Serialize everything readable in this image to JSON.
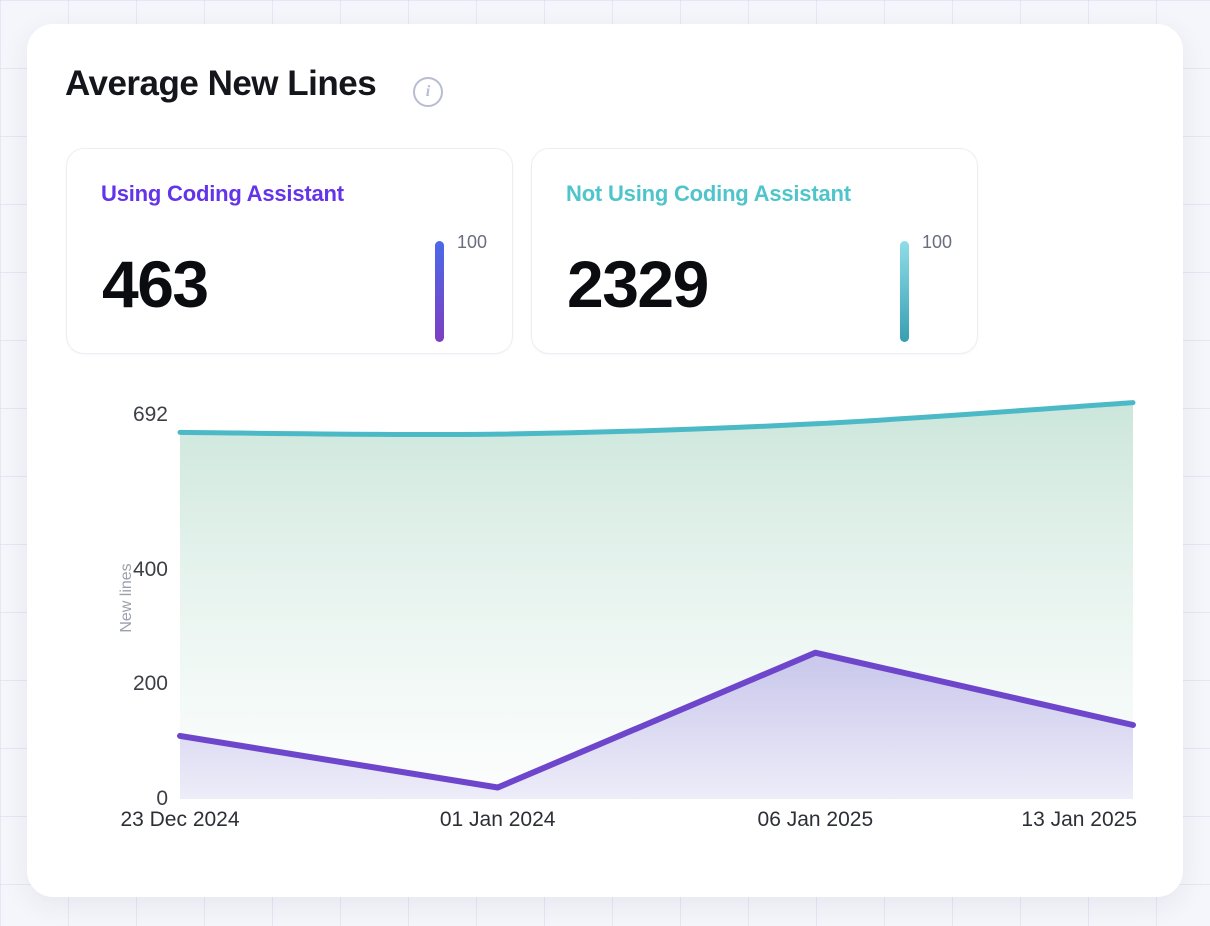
{
  "header": {
    "title": "Average New Lines"
  },
  "stats": [
    {
      "label": "Using Coding Assistant",
      "value": "463",
      "scale_max": "100",
      "accent": "#6334e9",
      "bar_top": "#4a6ae8",
      "bar_bottom": "#7e3ec1"
    },
    {
      "label": "Not Using Coding Assistant",
      "value": "2329",
      "scale_max": "100",
      "accent": "#4fc5cb",
      "bar_top": "#8fdde8",
      "bar_bottom": "#379fb1"
    }
  ],
  "chart_data": {
    "type": "area",
    "title": "Average New Lines",
    "x": [
      "23 Dec 2024",
      "01 Jan 2024",
      "06 Jan 2025",
      "13 Jan 2025"
    ],
    "series": [
      {
        "name": "Not Using Coding Assistant",
        "values": [
          639,
          636,
          654,
          691
        ],
        "color": "#4bb9c6",
        "curve": "smooth",
        "fill_top": "rgba(84,172,136,0.30)",
        "fill_bottom": "rgba(160,210,190,0.03)"
      },
      {
        "name": "Using Coding Assistant",
        "values": [
          110,
          20,
          255,
          129
        ],
        "color": "#6e46cc",
        "curve": "linear",
        "fill_top": "rgba(112,86,214,0.30)",
        "fill_bottom": "rgba(112,86,214,0.10)"
      }
    ],
    "ylabel": "New lines",
    "yticks": [
      0,
      200,
      400,
      692
    ],
    "ylim": [
      0,
      692
    ],
    "grid": false,
    "legend": "none"
  }
}
